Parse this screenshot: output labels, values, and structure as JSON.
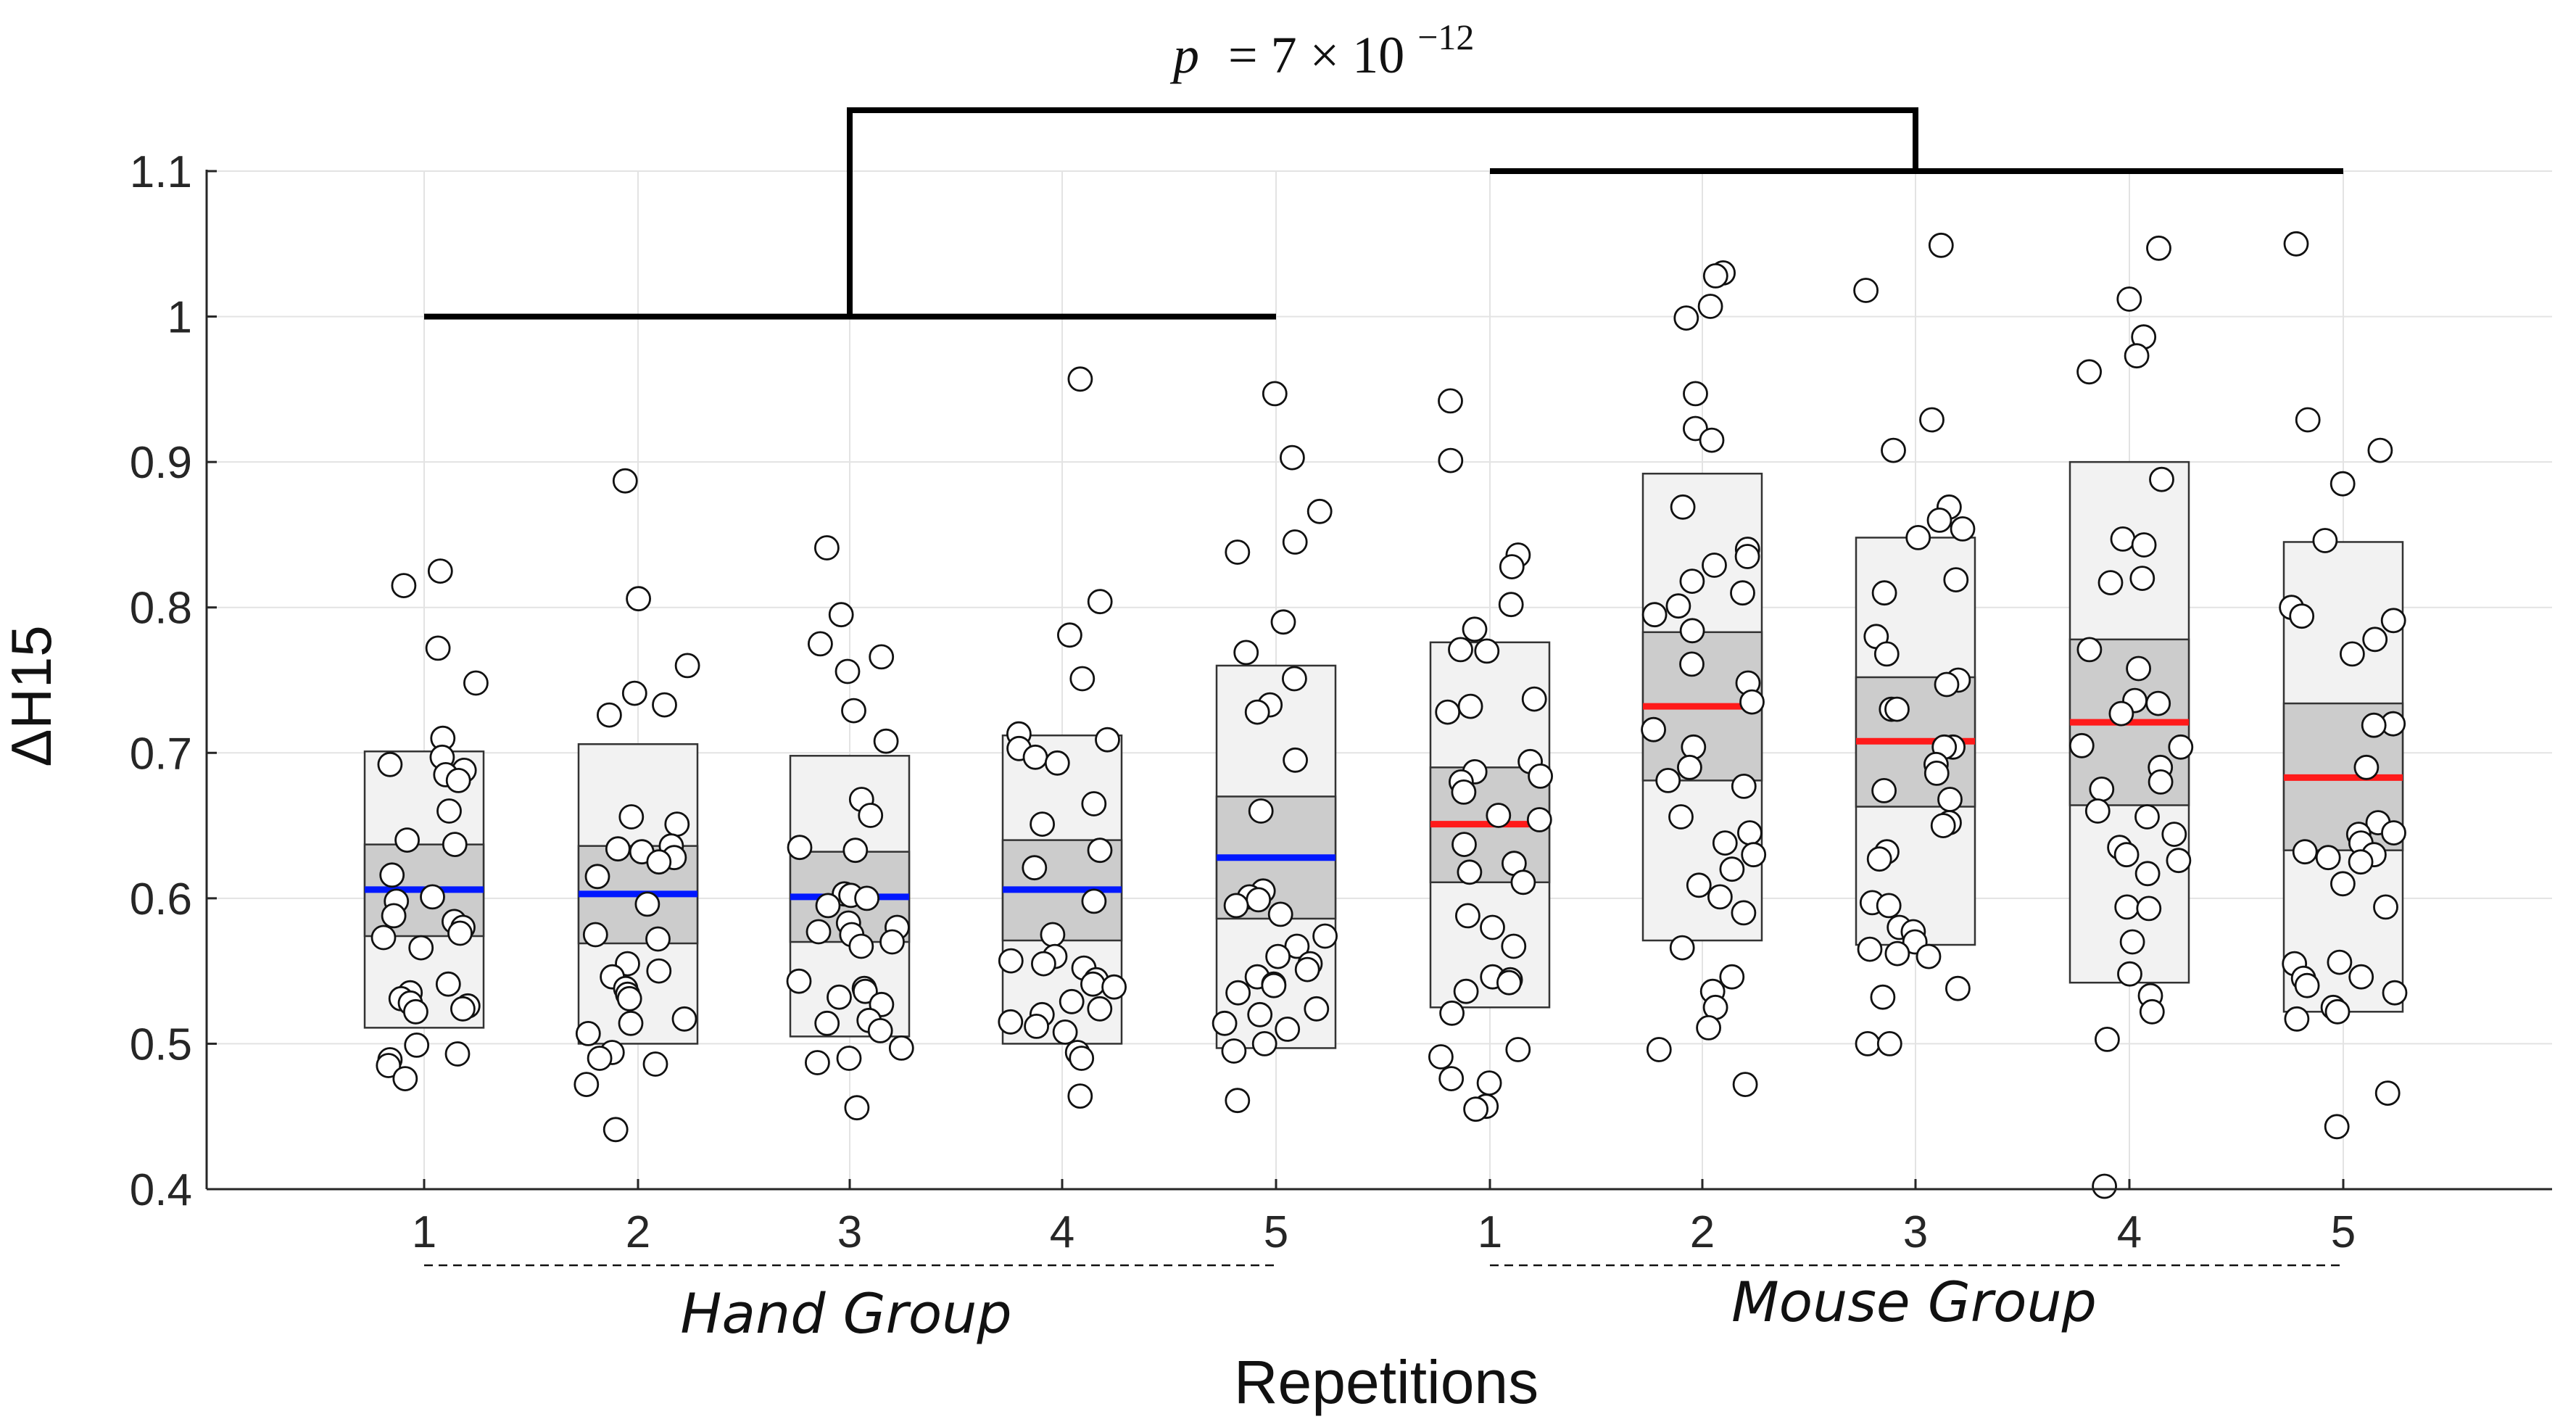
{
  "chart_data": {
    "type": "box-scatter",
    "title": "",
    "xlabel": "Repetitions",
    "ylabel": "ΔH15",
    "ylim": [
      0.4,
      1.1
    ],
    "yticks": [
      "0.4",
      "0.5",
      "0.6",
      "0.7",
      "0.8",
      "0.9",
      "1",
      "1.1"
    ],
    "grid": true,
    "significance": {
      "p_prefix": "p",
      "p_text": "= 7 × 10",
      "p_exponent": "−12",
      "left_bracket_y": 1.0,
      "right_bracket_y": 1.1
    },
    "groups": [
      {
        "name": "Hand Group",
        "color": "#0018ff"
      },
      {
        "name": "Mouse Group",
        "color": "#ff1a1a"
      }
    ],
    "categories": [
      "1",
      "2",
      "3",
      "4",
      "5",
      "1",
      "2",
      "3",
      "4",
      "5"
    ],
    "boxes": [
      {
        "group": 0,
        "rep": "1",
        "mean": 0.606,
        "ci_low": 0.574,
        "ci_high": 0.637,
        "sd_low": 0.511,
        "sd_high": 0.701,
        "points": [
          0.825,
          0.815,
          0.772,
          0.748,
          0.71,
          0.697,
          0.692,
          0.688,
          0.685,
          0.681,
          0.66,
          0.64,
          0.637,
          0.616,
          0.601,
          0.598,
          0.588,
          0.584,
          0.58,
          0.576,
          0.573,
          0.566,
          0.541,
          0.535,
          0.531,
          0.528,
          0.526,
          0.524,
          0.522,
          0.499,
          0.493,
          0.489,
          0.485,
          0.476
        ]
      },
      {
        "group": 0,
        "rep": "2",
        "mean": 0.603,
        "ci_low": 0.569,
        "ci_high": 0.636,
        "sd_low": 0.5,
        "sd_high": 0.706,
        "points": [
          0.887,
          0.806,
          0.76,
          0.741,
          0.733,
          0.726,
          0.656,
          0.651,
          0.636,
          0.634,
          0.632,
          0.628,
          0.625,
          0.615,
          0.596,
          0.575,
          0.572,
          0.555,
          0.55,
          0.546,
          0.538,
          0.534,
          0.531,
          0.517,
          0.514,
          0.507,
          0.494,
          0.49,
          0.486,
          0.472,
          0.441
        ]
      },
      {
        "group": 0,
        "rep": "3",
        "mean": 0.601,
        "ci_low": 0.57,
        "ci_high": 0.632,
        "sd_low": 0.505,
        "sd_high": 0.698,
        "points": [
          0.841,
          0.795,
          0.775,
          0.766,
          0.756,
          0.729,
          0.708,
          0.668,
          0.657,
          0.635,
          0.633,
          0.603,
          0.602,
          0.6,
          0.595,
          0.583,
          0.58,
          0.577,
          0.575,
          0.57,
          0.567,
          0.543,
          0.538,
          0.536,
          0.532,
          0.527,
          0.516,
          0.514,
          0.509,
          0.497,
          0.49,
          0.487,
          0.456
        ]
      },
      {
        "group": 0,
        "rep": "4",
        "mean": 0.606,
        "ci_low": 0.571,
        "ci_high": 0.64,
        "sd_low": 0.5,
        "sd_high": 0.712,
        "points": [
          0.957,
          0.804,
          0.781,
          0.751,
          0.713,
          0.709,
          0.703,
          0.697,
          0.693,
          0.665,
          0.651,
          0.633,
          0.621,
          0.598,
          0.575,
          0.56,
          0.557,
          0.555,
          0.552,
          0.544,
          0.541,
          0.539,
          0.529,
          0.524,
          0.52,
          0.515,
          0.512,
          0.508,
          0.494,
          0.49,
          0.464
        ]
      },
      {
        "group": 0,
        "rep": "5",
        "mean": 0.628,
        "ci_low": 0.586,
        "ci_high": 0.67,
        "sd_low": 0.497,
        "sd_high": 0.76,
        "points": [
          0.947,
          0.903,
          0.866,
          0.845,
          0.838,
          0.79,
          0.769,
          0.751,
          0.733,
          0.728,
          0.695,
          0.66,
          0.605,
          0.601,
          0.599,
          0.595,
          0.589,
          0.574,
          0.567,
          0.56,
          0.555,
          0.551,
          0.546,
          0.541,
          0.54,
          0.535,
          0.524,
          0.52,
          0.514,
          0.51,
          0.5,
          0.495,
          0.461
        ]
      },
      {
        "group": 1,
        "rep": "1",
        "mean": 0.651,
        "ci_low": 0.611,
        "ci_high": 0.69,
        "sd_low": 0.525,
        "sd_high": 0.776,
        "points": [
          0.942,
          0.901,
          0.836,
          0.828,
          0.802,
          0.785,
          0.771,
          0.77,
          0.737,
          0.732,
          0.728,
          0.694,
          0.687,
          0.684,
          0.68,
          0.673,
          0.657,
          0.654,
          0.637,
          0.624,
          0.618,
          0.611,
          0.588,
          0.58,
          0.567,
          0.546,
          0.544,
          0.542,
          0.536,
          0.521,
          0.496,
          0.491,
          0.476,
          0.473,
          0.457,
          0.455
        ]
      },
      {
        "group": 1,
        "rep": "2",
        "mean": 0.732,
        "ci_low": 0.681,
        "ci_high": 0.783,
        "sd_low": 0.571,
        "sd_high": 0.892,
        "points": [
          1.03,
          1.028,
          1.007,
          0.999,
          0.947,
          0.923,
          0.915,
          0.869,
          0.84,
          0.835,
          0.829,
          0.818,
          0.81,
          0.801,
          0.795,
          0.784,
          0.761,
          0.748,
          0.735,
          0.716,
          0.704,
          0.69,
          0.681,
          0.677,
          0.656,
          0.645,
          0.638,
          0.63,
          0.62,
          0.609,
          0.601,
          0.59,
          0.566,
          0.546,
          0.536,
          0.525,
          0.511,
          0.496,
          0.472
        ]
      },
      {
        "group": 1,
        "rep": "3",
        "mean": 0.708,
        "ci_low": 0.663,
        "ci_high": 0.752,
        "sd_low": 0.568,
        "sd_high": 0.848,
        "points": [
          1.049,
          1.018,
          0.929,
          0.908,
          0.869,
          0.86,
          0.854,
          0.848,
          0.819,
          0.81,
          0.78,
          0.768,
          0.75,
          0.747,
          0.73,
          0.73,
          0.704,
          0.704,
          0.692,
          0.686,
          0.674,
          0.668,
          0.652,
          0.65,
          0.632,
          0.627,
          0.597,
          0.595,
          0.58,
          0.577,
          0.57,
          0.565,
          0.562,
          0.56,
          0.538,
          0.532,
          0.5,
          0.5
        ]
      },
      {
        "group": 1,
        "rep": "4",
        "mean": 0.721,
        "ci_low": 0.664,
        "ci_high": 0.778,
        "sd_low": 0.542,
        "sd_high": 0.9,
        "points": [
          1.047,
          1.012,
          0.986,
          0.973,
          0.962,
          0.888,
          0.847,
          0.843,
          0.82,
          0.817,
          0.771,
          0.758,
          0.736,
          0.734,
          0.727,
          0.705,
          0.704,
          0.69,
          0.68,
          0.675,
          0.66,
          0.656,
          0.644,
          0.635,
          0.63,
          0.626,
          0.617,
          0.594,
          0.593,
          0.57,
          0.548,
          0.533,
          0.522,
          0.503,
          0.402
        ]
      },
      {
        "group": 1,
        "rep": "5",
        "mean": 0.683,
        "ci_low": 0.633,
        "ci_high": 0.734,
        "sd_low": 0.522,
        "sd_high": 0.845,
        "points": [
          1.05,
          0.929,
          0.908,
          0.885,
          0.846,
          0.8,
          0.794,
          0.791,
          0.778,
          0.768,
          0.72,
          0.719,
          0.69,
          0.652,
          0.645,
          0.644,
          0.638,
          0.632,
          0.63,
          0.628,
          0.625,
          0.61,
          0.594,
          0.556,
          0.555,
          0.546,
          0.545,
          0.54,
          0.535,
          0.525,
          0.522,
          0.517,
          0.466,
          0.443
        ]
      }
    ]
  }
}
